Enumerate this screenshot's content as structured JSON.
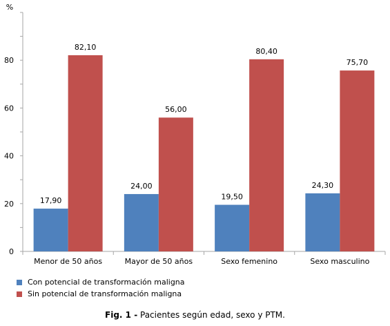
{
  "chart_data": {
    "type": "bar",
    "ylabel": "%",
    "ylim": [
      0,
      100
    ],
    "yticks": [
      "0",
      "20",
      "40",
      "60",
      "80"
    ],
    "categories": [
      "Menor de 50 años",
      "Mayor de 50 años",
      "Sexo femenino",
      "Sexo masculino"
    ],
    "series": [
      {
        "name": "Con potencial de transformación maligna",
        "color": "#4f81bd",
        "values": [
          17.9,
          24.0,
          19.5,
          24.3
        ],
        "labels": [
          "17,90",
          "24,00",
          "19,50",
          "24,30"
        ]
      },
      {
        "name": "Sin potencial de transformación maligna",
        "color": "#c0504d",
        "values": [
          82.1,
          56.0,
          80.4,
          75.7
        ],
        "labels": [
          "82,10",
          "56,00",
          "80,40",
          "75,70"
        ]
      }
    ],
    "legend_position": "bottom-left",
    "grid": false
  },
  "caption": {
    "prefix": "Fig. 1 -",
    "text": " Pacientes según edad, sexo y PTM."
  }
}
